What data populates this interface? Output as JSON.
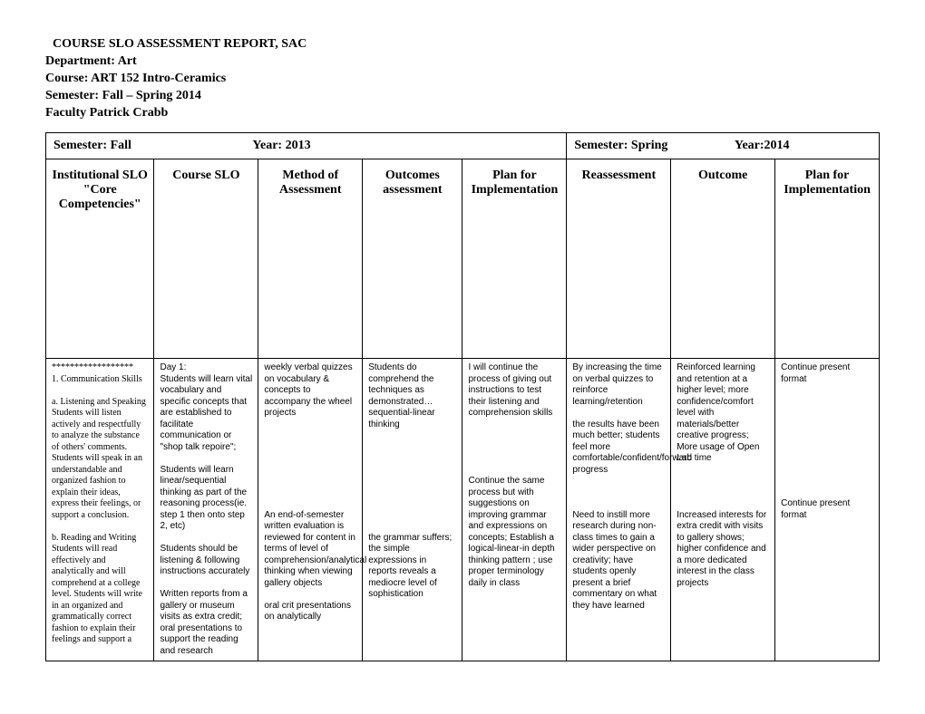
{
  "header": {
    "title": "COURSE SLO ASSESSMENT REPORT, SAC",
    "department": "Department: Art",
    "course": "Course: ART 152 Intro-Ceramics",
    "semester": "Semester: Fall – Spring 2014",
    "faculty": "Faculty    Patrick Crabb"
  },
  "sem_row": {
    "left_label": "Semester:  Fall",
    "left_year": "Year: 2013",
    "right_label": "Semester:  Spring",
    "right_year": "Year:2014"
  },
  "columns": {
    "c1": "Institutional SLO \"Core Competencies\"",
    "c2": "Course SLO",
    "c3": "Method of Assessment",
    "c4": "Outcomes assessment",
    "c5": "Plan for Implementation",
    "c6": "Reassessment",
    "c7": "Outcome",
    "c8": "Plan for Implementation"
  },
  "row1": {
    "institutional": "******************\n1. Communication Skills\n\n     a.    Listening and Speaking\nStudents will listen actively and respectfully to analyze the substance of others' comments. Students will speak in an understandable and organized fashion to explain their ideas, express their feelings, or support a conclusion.\n\nb. Reading and Writing Students will read effectively and analytically and will comprehend at a college level. Students will write in an organized and grammatically correct fashion to explain their feelings and support a",
    "course_slo": "Day 1:\nStudents will learn vital vocabulary and specific concepts that are established to facilitate communication or \"shop talk repoire\";\n\nStudents will learn linear/sequential thinking as part of the reasoning process(ie. step 1 then onto step 2, etc)\n\n Students should be listening & following instructions accurately\n\nWritten reports from a gallery or museum visits as extra credit; oral presentations to support the reading and research",
    "method": "weekly verbal quizzes on vocabulary & concepts to accompany the wheel projects\n\n\n\n\n\n\n\n\nAn end-of-semester written evaluation is reviewed for content in terms of level of comprehension/analytical thinking when viewing gallery objects\n\n oral crit presentations on analytically",
    "outcomes": " Students do comprehend the techniques as demonstrated… sequential-linear thinking\n\n\n\n\n\n\n\n\n\nthe grammar suffers; the simple expressions in reports reveals a mediocre level of sophistication",
    "plan": "I will continue the process of giving out instructions to test their listening and comprehension skills\n\n\n\n\n\nContinue the same process but with suggestions on improving grammar and expressions on concepts;  Establish a logical-linear-in depth thinking pattern ; use proper terminology daily in class",
    "reassessment": " By increasing the time on verbal quizzes to reinforce learning/retention\n\nthe results have been much better; students feel more comfortable/confident/forward progress\n\n\n\nNeed to instill more research during non-class times to gain a wider perspective on creativity; have students openly present a brief commentary on what they have learned",
    "outcome": "Reinforced learning and retention at a higher level; more confidence/comfort level with materials/better creative progress;\nMore usage of Open Lab time\n\n\n\n\nIncreased interests for extra credit with visits to gallery shows; higher confidence and a more dedicated interest in the class projects",
    "plan2": "Continue present format\n\n\n\n\n\n\n\n\n\n\nContinue present format"
  }
}
